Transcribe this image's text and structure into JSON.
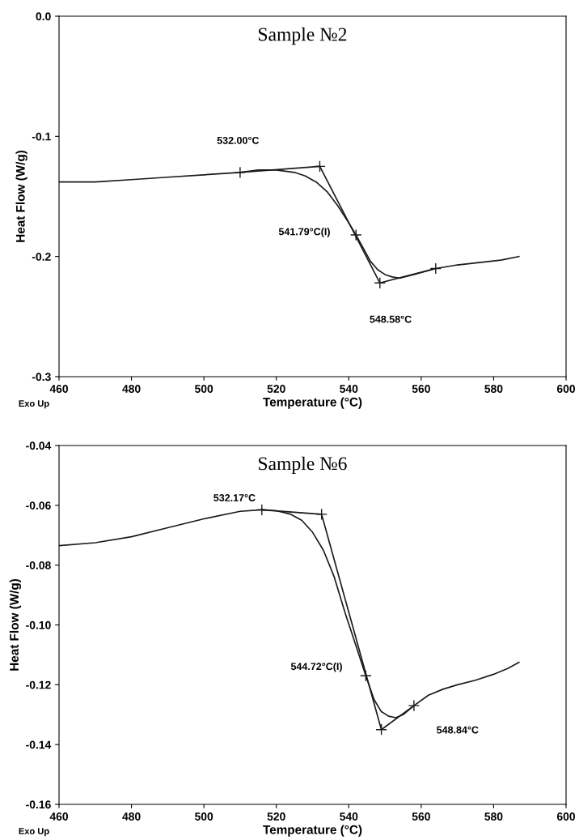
{
  "chart_data": [
    {
      "type": "line",
      "title": "Sample №2",
      "xlabel": "Temperature (°C)",
      "ylabel": "Heat Flow (W/g)",
      "xlim": [
        460,
        600
      ],
      "ylim": [
        -0.3,
        0.0
      ],
      "xticks": [
        460,
        480,
        500,
        520,
        540,
        560,
        580,
        600
      ],
      "yticks": [
        {
          "value": 0.0,
          "label": "0.0"
        },
        -0.1,
        -0.2,
        -0.3
      ],
      "grid": false,
      "legend": false,
      "line_style": "solid",
      "series": [
        {
          "color": "#1a1a1a",
          "x": [
            460,
            470,
            480,
            490,
            500,
            510,
            515,
            520,
            525,
            528,
            531,
            534,
            537,
            540,
            542,
            544,
            546,
            548,
            550,
            552,
            554,
            558,
            564,
            570,
            576,
            582,
            587
          ],
          "values": [
            -0.138,
            -0.138,
            -0.136,
            -0.134,
            -0.132,
            -0.13,
            -0.128,
            -0.128,
            -0.13,
            -0.133,
            -0.138,
            -0.146,
            -0.158,
            -0.172,
            -0.182,
            -0.193,
            -0.204,
            -0.211,
            -0.215,
            -0.217,
            -0.218,
            -0.215,
            -0.21,
            -0.207,
            -0.205,
            -0.203,
            -0.2
          ]
        },
        {
          "color": "#1a1a1a",
          "x": [
            510,
            532,
            548.6,
            564
          ],
          "values": [
            -0.13,
            -0.125,
            -0.222,
            -0.21
          ]
        },
        {
          "type": "scatter",
          "marker": "cross",
          "color": "#1a1a1a",
          "x": [
            510,
            532,
            542,
            548.6,
            564
          ],
          "values": [
            -0.13,
            -0.125,
            -0.182,
            -0.222,
            -0.21
          ]
        }
      ],
      "annotations": [
        "532.00°C",
        "541.79°C(I)",
        "548.58°C",
        "Exo Up"
      ]
    },
    {
      "type": "line",
      "title": "Sample №6",
      "xlabel": "Temperature (°C)",
      "ylabel": "Heat Flow (W/g)",
      "xlim": [
        460,
        600
      ],
      "ylim": [
        -0.16,
        -0.04
      ],
      "xticks": [
        460,
        480,
        500,
        520,
        540,
        560,
        580,
        600
      ],
      "yticks": [
        -0.04,
        -0.06,
        -0.08,
        {
          "value": -0.1,
          "label": "-0.10"
        },
        -0.12,
        -0.14,
        -0.16
      ],
      "grid": false,
      "legend": false,
      "line_style": "solid",
      "series": [
        {
          "color": "#1a1a1a",
          "x": [
            460,
            470,
            480,
            490,
            500,
            510,
            516,
            520,
            524,
            527,
            530,
            533,
            536,
            539,
            542,
            544.7,
            547,
            549,
            551,
            553,
            555,
            558,
            562,
            566,
            570,
            575,
            580,
            584,
            587
          ],
          "values": [
            -0.0735,
            -0.0725,
            -0.0705,
            -0.0675,
            -0.0645,
            -0.062,
            -0.0615,
            -0.0618,
            -0.063,
            -0.065,
            -0.069,
            -0.075,
            -0.084,
            -0.096,
            -0.107,
            -0.117,
            -0.125,
            -0.129,
            -0.1305,
            -0.131,
            -0.13,
            -0.127,
            -0.1235,
            -0.1215,
            -0.12,
            -0.1185,
            -0.1165,
            -0.1145,
            -0.1125
          ]
        },
        {
          "color": "#1a1a1a",
          "x": [
            516,
            532.5,
            549,
            558
          ],
          "values": [
            -0.0615,
            -0.063,
            -0.135,
            -0.127
          ]
        },
        {
          "type": "scatter",
          "marker": "cross",
          "color": "#1a1a1a",
          "x": [
            516,
            532.5,
            544.7,
            549,
            558
          ],
          "values": [
            -0.0615,
            -0.063,
            -0.117,
            -0.135,
            -0.127
          ]
        }
      ],
      "annotations": [
        "532.17°C",
        "544.72°C(I)",
        "548.84°C",
        "Exo Up"
      ]
    }
  ]
}
